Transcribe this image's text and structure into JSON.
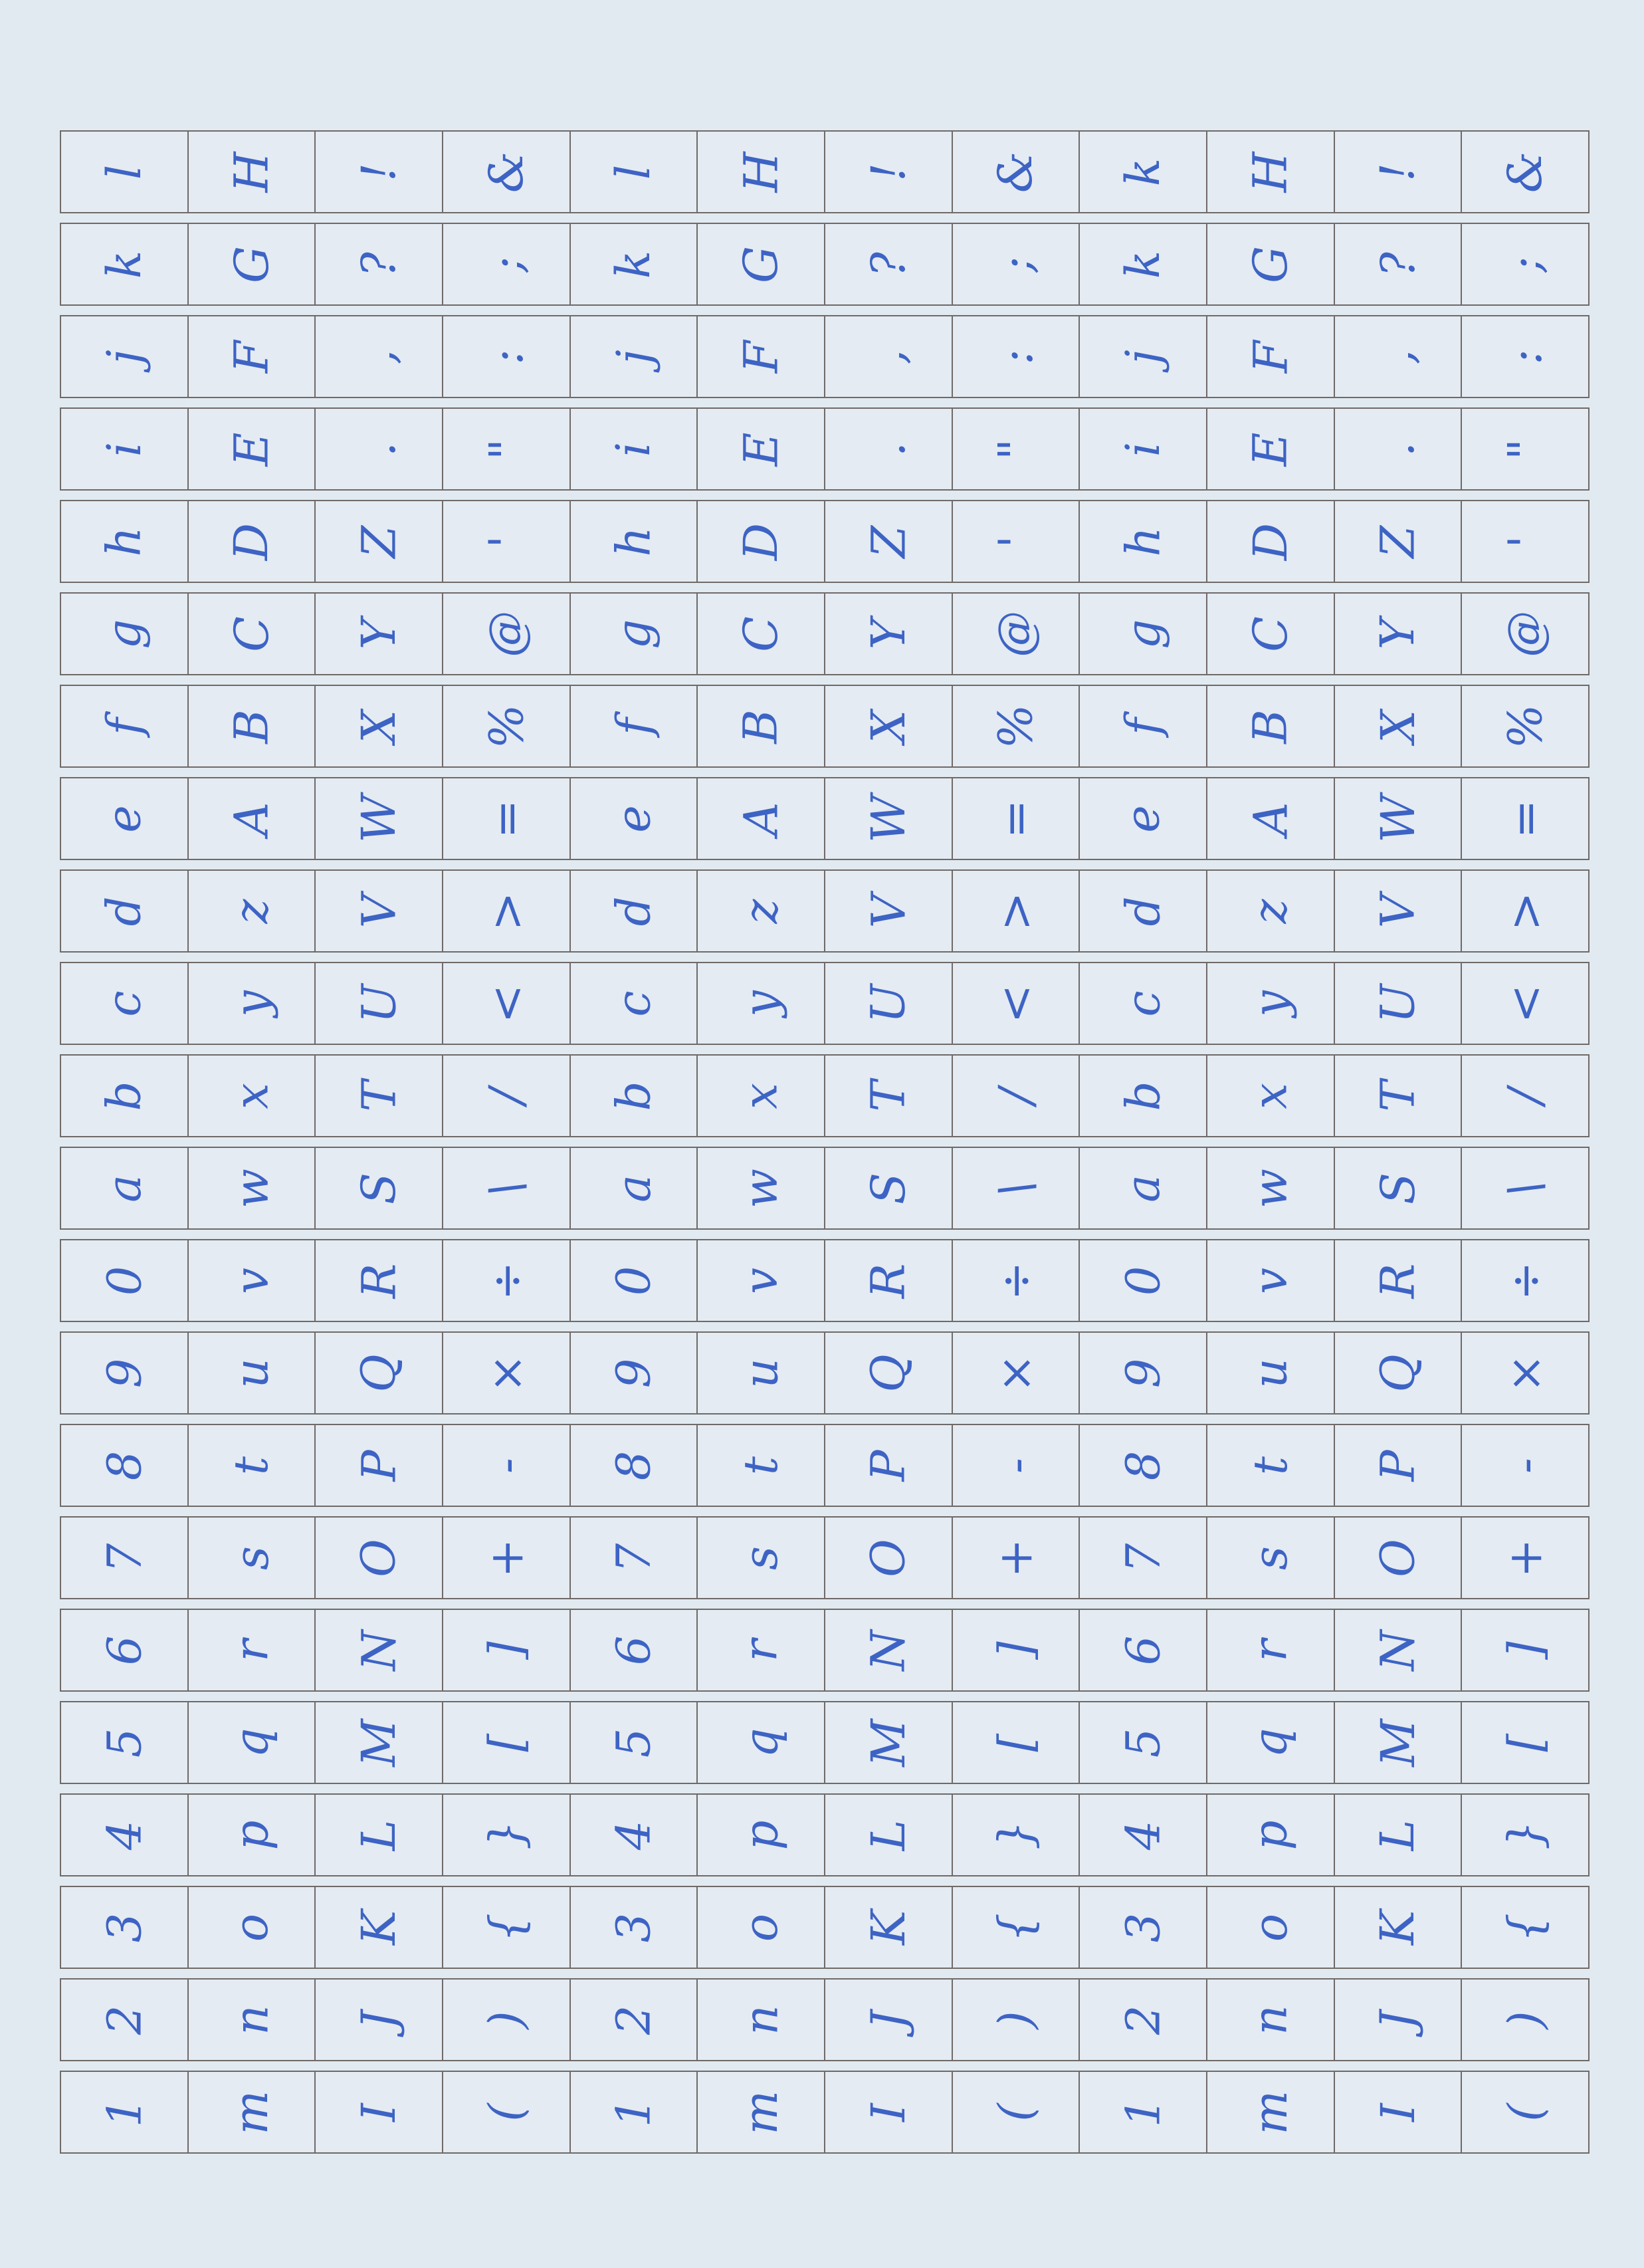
{
  "colors": {
    "paper": "#e2eaf1",
    "grid_line": "#6f6a68",
    "ink": "#3d63c4"
  },
  "grid": {
    "columns": 12,
    "rows": [
      [
        "l",
        "H",
        "!",
        "&",
        "l",
        "H",
        "!",
        "&",
        "k",
        "H",
        "!",
        "&"
      ],
      [
        "k",
        "G",
        "?",
        ";",
        "k",
        "G",
        "?",
        ";",
        "k",
        "G",
        "?",
        ";"
      ],
      [
        "j",
        "F",
        ",",
        ":",
        "j",
        "F",
        ",",
        ":",
        "j",
        "F",
        ",",
        ":"
      ],
      [
        "i",
        "E",
        ".",
        "\"",
        "i",
        "E",
        ".",
        "\"",
        "i",
        "E",
        ".",
        "\""
      ],
      [
        "h",
        "D",
        "Z",
        "'",
        "h",
        "D",
        "Z",
        "'",
        "h",
        "D",
        "Z",
        "'"
      ],
      [
        "g",
        "C",
        "Y",
        "@",
        "g",
        "C",
        "Y",
        "@",
        "g",
        "C",
        "Y",
        "@"
      ],
      [
        "f",
        "B",
        "X",
        "%",
        "f",
        "B",
        "X",
        "%",
        "f",
        "B",
        "X",
        "%"
      ],
      [
        "e",
        "A",
        "W",
        "=",
        "e",
        "A",
        "W",
        "=",
        "e",
        "A",
        "W",
        "="
      ],
      [
        "d",
        "z",
        "V",
        ">",
        "d",
        "z",
        "V",
        ">",
        "d",
        "z",
        "V",
        ">"
      ],
      [
        "c",
        "y",
        "U",
        "<",
        "c",
        "y",
        "U",
        "<",
        "c",
        "y",
        "U",
        "<"
      ],
      [
        "b",
        "x",
        "T",
        "/",
        "b",
        "x",
        "T",
        "/",
        "b",
        "x",
        "T",
        "/"
      ],
      [
        "a",
        "w",
        "S",
        "\\",
        "a",
        "w",
        "S",
        "\\",
        "a",
        "w",
        "S",
        "\\"
      ],
      [
        "0",
        "v",
        "R",
        "÷",
        "0",
        "v",
        "R",
        "÷",
        "0",
        "v",
        "R",
        "÷"
      ],
      [
        "9",
        "u",
        "Q",
        "×",
        "9",
        "u",
        "Q",
        "×",
        "9",
        "u",
        "Q",
        "×"
      ],
      [
        "8",
        "t",
        "P",
        "-",
        "8",
        "t",
        "P",
        "-",
        "8",
        "t",
        "P",
        "-"
      ],
      [
        "7",
        "s",
        "O",
        "+",
        "7",
        "s",
        "O",
        "+",
        "7",
        "s",
        "O",
        "+"
      ],
      [
        "6",
        "r",
        "N",
        "]",
        "6",
        "r",
        "N",
        "]",
        "6",
        "r",
        "N",
        "]"
      ],
      [
        "5",
        "q",
        "M",
        "[",
        "5",
        "q",
        "M",
        "[",
        "5",
        "q",
        "M",
        "["
      ],
      [
        "4",
        "p",
        "L",
        "}",
        "4",
        "p",
        "L",
        "}",
        "4",
        "p",
        "L",
        "}"
      ],
      [
        "3",
        "o",
        "K",
        "{",
        "3",
        "o",
        "K",
        "{",
        "3",
        "o",
        "K",
        "{"
      ],
      [
        "2",
        "n",
        "J",
        ")",
        "2",
        "n",
        "J",
        ")",
        "2",
        "n",
        "J",
        ")"
      ],
      [
        "1",
        "m",
        "I",
        "(",
        "1",
        "m",
        "I",
        "(",
        "1",
        "m",
        "I",
        "("
      ]
    ]
  }
}
